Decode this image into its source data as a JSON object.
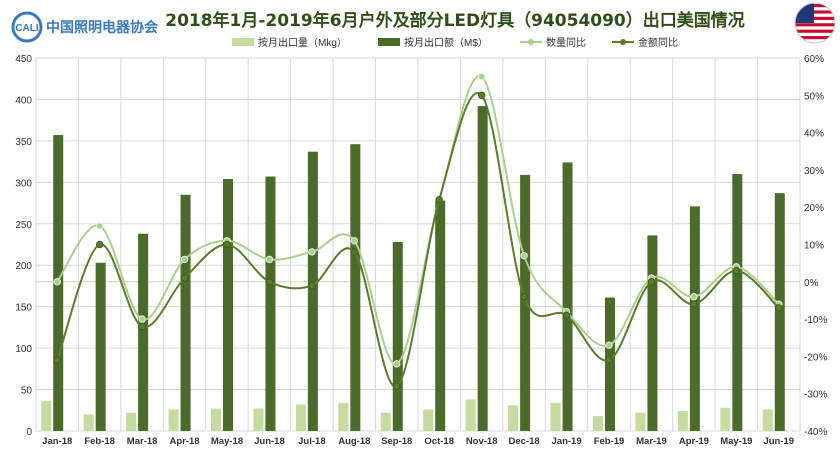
{
  "header": {
    "title": "2018年1月-2019年6月户外及部分LED灯具（94054090）出口美国情况",
    "logo_text": "中国照明电器协会",
    "logo_badge": "CALI"
  },
  "icons": {
    "flag": "us-flag-icon",
    "logo": "association-logo-icon"
  },
  "colors": {
    "qty_bar": "#c5dba0",
    "amt_bar": "#4a6b2a",
    "qty_line": "#a9d08e",
    "amt_line": "#5a7d2a",
    "grid": "#d9d9d9",
    "title": "#2f4f1a"
  },
  "chart_data": {
    "type": "bar",
    "categories": [
      "Jan-18",
      "Feb-18",
      "Mar-18",
      "Apr-18",
      "May-18",
      "Jun-18",
      "Jul-18",
      "Aug-18",
      "Sep-18",
      "Oct-18",
      "Nov-18",
      "Dec-18",
      "Jan-19",
      "Feb-19",
      "Mar-19",
      "Apr-19",
      "May-19",
      "Jun-19"
    ],
    "left_axis": {
      "min": 0,
      "max": 450,
      "ticks": [
        0,
        50,
        100,
        150,
        200,
        250,
        300,
        350,
        400,
        450
      ]
    },
    "right_axis": {
      "min": -40,
      "max": 60,
      "ticks": [
        "-40%",
        "-30%",
        "-20%",
        "-10%",
        "0%",
        "10%",
        "20%",
        "30%",
        "40%",
        "50%",
        "60%"
      ]
    },
    "legend_position": "top",
    "grid": true,
    "series": [
      {
        "name": "按月出口量（Mkg）",
        "kind": "bar",
        "axis": "left",
        "values": [
          36,
          20,
          22,
          26,
          27,
          27,
          32,
          34,
          22,
          26,
          38,
          31,
          34,
          18,
          22,
          24,
          28,
          26
        ]
      },
      {
        "name": "按月出口额（M$）",
        "kind": "bar",
        "axis": "left",
        "values": [
          357,
          203,
          238,
          285,
          304,
          307,
          337,
          346,
          228,
          278,
          392,
          309,
          324,
          161,
          236,
          271,
          310,
          287
        ]
      },
      {
        "name": "数量同比",
        "kind": "line",
        "axis": "right",
        "values": [
          0,
          15,
          -10,
          6,
          11,
          6,
          8,
          11,
          -22,
          22,
          55,
          7,
          -8,
          -17,
          1,
          -4,
          4,
          -6
        ]
      },
      {
        "name": "金额同比",
        "kind": "line",
        "axis": "right",
        "values": [
          -21,
          10,
          -12,
          1,
          10,
          0,
          -1,
          8,
          -28,
          22,
          50,
          -4,
          -9,
          -21,
          0,
          -6,
          3,
          -7
        ]
      }
    ]
  }
}
